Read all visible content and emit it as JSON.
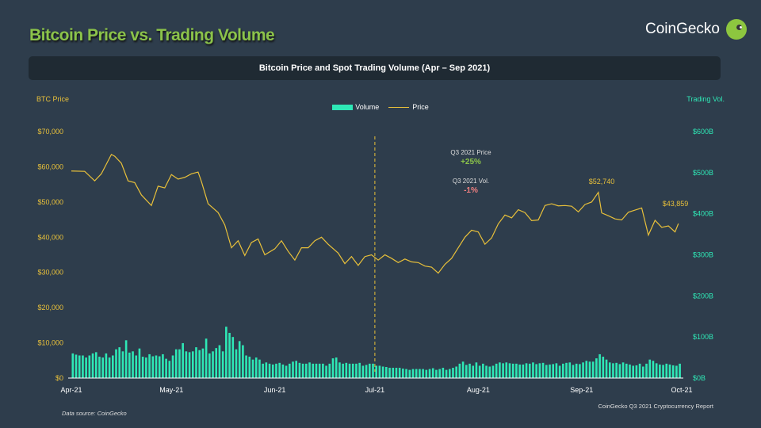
{
  "header": {
    "title": "Bitcoin Price vs. Trading Volume",
    "brand": "CoinGecko",
    "banner": "Bitcoin Price and Spot Trading Volume (Apr – Sep 2021)"
  },
  "footer": {
    "source": "Data source: CoinGecko",
    "report": "CoinGecko Q3 2021 Cryptocurrency Report"
  },
  "chart_data": {
    "type": "bar+line",
    "ylabel_left": "BTC Price",
    "ylabel_right": "Trading Vol.",
    "yticks_left": [
      "$0",
      "$10,000",
      "$20,000",
      "$30,000",
      "$40,000",
      "$50,000",
      "$60,000",
      "$70,000"
    ],
    "yticks_right": [
      "$0B",
      "$100B",
      "$200B",
      "$300B",
      "$400B",
      "$500B",
      "$600B"
    ],
    "ylim_left": [
      0,
      70000
    ],
    "ylim_right": [
      0,
      600
    ],
    "xticks": [
      "Apr-21",
      "May-21",
      "Jun-21",
      "Jul-21",
      "Aug-21",
      "Sep-21",
      "Oct-21"
    ],
    "xlim": [
      "2021-04-01",
      "2021-10-01"
    ],
    "colors": {
      "volume": "#2ee8b6",
      "price": "#e8c03a",
      "left_axis": "#e8c03a",
      "right_axis": "#2ee8b6",
      "positive": "#8bc34a",
      "negative": "#f08080"
    },
    "legend": [
      "Volume",
      "Price"
    ],
    "legend_position": "top",
    "marker_line": "2021-07-01",
    "annotations": {
      "price_label": "Q3 2021 Price",
      "price_change": "+25%",
      "vol_label": "Q3 2021 Vol.",
      "vol_change": "-1%",
      "peak": "$52,740",
      "last": "$43,859"
    },
    "price": [
      [
        "2021-04-01",
        58800
      ],
      [
        "2021-04-05",
        58700
      ],
      [
        "2021-04-08",
        56000
      ],
      [
        "2021-04-10",
        58000
      ],
      [
        "2021-04-13",
        63500
      ],
      [
        "2021-04-14",
        63000
      ],
      [
        "2021-04-16",
        61000
      ],
      [
        "2021-04-18",
        56000
      ],
      [
        "2021-04-20",
        55500
      ],
      [
        "2021-04-22",
        52000
      ],
      [
        "2021-04-25",
        49000
      ],
      [
        "2021-04-27",
        54500
      ],
      [
        "2021-04-29",
        54000
      ],
      [
        "2021-05-01",
        57800
      ],
      [
        "2021-05-03",
        56500
      ],
      [
        "2021-05-05",
        57000
      ],
      [
        "2021-05-07",
        58000
      ],
      [
        "2021-05-09",
        58500
      ],
      [
        "2021-05-10",
        55800
      ],
      [
        "2021-05-12",
        49500
      ],
      [
        "2021-05-15",
        47000
      ],
      [
        "2021-05-17",
        43500
      ],
      [
        "2021-05-19",
        37000
      ],
      [
        "2021-05-21",
        39000
      ],
      [
        "2021-05-23",
        34800
      ],
      [
        "2021-05-25",
        38500
      ],
      [
        "2021-05-27",
        39500
      ],
      [
        "2021-05-29",
        35000
      ],
      [
        "2021-06-01",
        36700
      ],
      [
        "2021-06-03",
        39000
      ],
      [
        "2021-06-05",
        36000
      ],
      [
        "2021-06-07",
        33500
      ],
      [
        "2021-06-09",
        37000
      ],
      [
        "2021-06-11",
        37000
      ],
      [
        "2021-06-13",
        39000
      ],
      [
        "2021-06-15",
        40000
      ],
      [
        "2021-06-17",
        38000
      ],
      [
        "2021-06-20",
        35500
      ],
      [
        "2021-06-22",
        32500
      ],
      [
        "2021-06-24",
        34500
      ],
      [
        "2021-06-26",
        32000
      ],
      [
        "2021-06-28",
        34500
      ],
      [
        "2021-06-30",
        35000
      ],
      [
        "2021-07-02",
        33500
      ],
      [
        "2021-07-04",
        35000
      ],
      [
        "2021-07-06",
        34000
      ],
      [
        "2021-07-08",
        32800
      ],
      [
        "2021-07-10",
        33800
      ],
      [
        "2021-07-12",
        33000
      ],
      [
        "2021-07-14",
        32800
      ],
      [
        "2021-07-16",
        31800
      ],
      [
        "2021-07-18",
        31500
      ],
      [
        "2021-07-20",
        29800
      ],
      [
        "2021-07-22",
        32300
      ],
      [
        "2021-07-24",
        34000
      ],
      [
        "2021-07-26",
        37000
      ],
      [
        "2021-07-28",
        40000
      ],
      [
        "2021-07-30",
        42000
      ],
      [
        "2021-08-01",
        41500
      ],
      [
        "2021-08-03",
        38000
      ],
      [
        "2021-08-05",
        39800
      ],
      [
        "2021-08-07",
        43800
      ],
      [
        "2021-08-09",
        46300
      ],
      [
        "2021-08-11",
        45500
      ],
      [
        "2021-08-13",
        47800
      ],
      [
        "2021-08-15",
        47000
      ],
      [
        "2021-08-17",
        44700
      ],
      [
        "2021-08-19",
        44900
      ],
      [
        "2021-08-21",
        49000
      ],
      [
        "2021-08-23",
        49500
      ],
      [
        "2021-08-25",
        48900
      ],
      [
        "2021-08-27",
        49000
      ],
      [
        "2021-08-29",
        48800
      ],
      [
        "2021-08-31",
        47200
      ],
      [
        "2021-09-02",
        49300
      ],
      [
        "2021-09-04",
        50000
      ],
      [
        "2021-09-06",
        52740
      ],
      [
        "2021-09-07",
        46900
      ],
      [
        "2021-09-09",
        46100
      ],
      [
        "2021-09-11",
        45200
      ],
      [
        "2021-09-13",
        44900
      ],
      [
        "2021-09-15",
        47100
      ],
      [
        "2021-09-17",
        47700
      ],
      [
        "2021-09-19",
        48300
      ],
      [
        "2021-09-21",
        40600
      ],
      [
        "2021-09-23",
        44800
      ],
      [
        "2021-09-25",
        42800
      ],
      [
        "2021-09-27",
        43200
      ],
      [
        "2021-09-29",
        41500
      ],
      [
        "2021-09-30",
        43859
      ]
    ],
    "volume_start": "2021-04-01",
    "volume_daily_B": [
      60,
      57,
      55,
      55,
      50,
      55,
      60,
      63,
      52,
      50,
      60,
      50,
      55,
      70,
      75,
      65,
      92,
      62,
      65,
      55,
      72,
      52,
      50,
      58,
      53,
      55,
      53,
      58,
      47,
      42,
      55,
      70,
      70,
      85,
      65,
      63,
      65,
      75,
      68,
      72,
      96,
      60,
      65,
      73,
      80,
      65,
      125,
      110,
      100,
      70,
      90,
      80,
      55,
      52,
      45,
      50,
      45,
      35,
      38,
      35,
      33,
      35,
      37,
      33,
      30,
      35,
      40,
      42,
      37,
      35,
      35,
      38,
      35,
      35,
      35,
      35,
      30,
      35,
      48,
      50,
      38,
      35,
      37,
      35,
      35,
      35,
      37,
      30,
      32,
      35,
      35,
      30,
      30,
      28,
      27,
      25,
      25,
      25,
      25,
      23,
      22,
      20,
      22,
      22,
      22,
      22,
      20,
      22,
      24,
      20,
      22,
      25,
      20,
      22,
      25,
      28,
      35,
      40,
      32,
      35,
      30,
      38,
      30,
      35,
      30,
      28,
      30,
      35,
      38,
      36,
      38,
      36,
      35,
      35,
      33,
      33,
      36,
      35,
      38,
      34,
      36,
      37,
      32,
      33,
      34,
      36,
      30,
      35,
      37,
      38,
      32,
      35,
      34,
      38,
      42,
      40,
      40,
      48,
      58,
      52,
      45,
      38,
      36,
      37,
      34,
      38,
      35,
      33,
      30,
      31,
      35,
      28,
      35,
      45,
      42,
      36,
      33,
      32,
      35,
      33,
      31,
      30,
      35
    ]
  }
}
